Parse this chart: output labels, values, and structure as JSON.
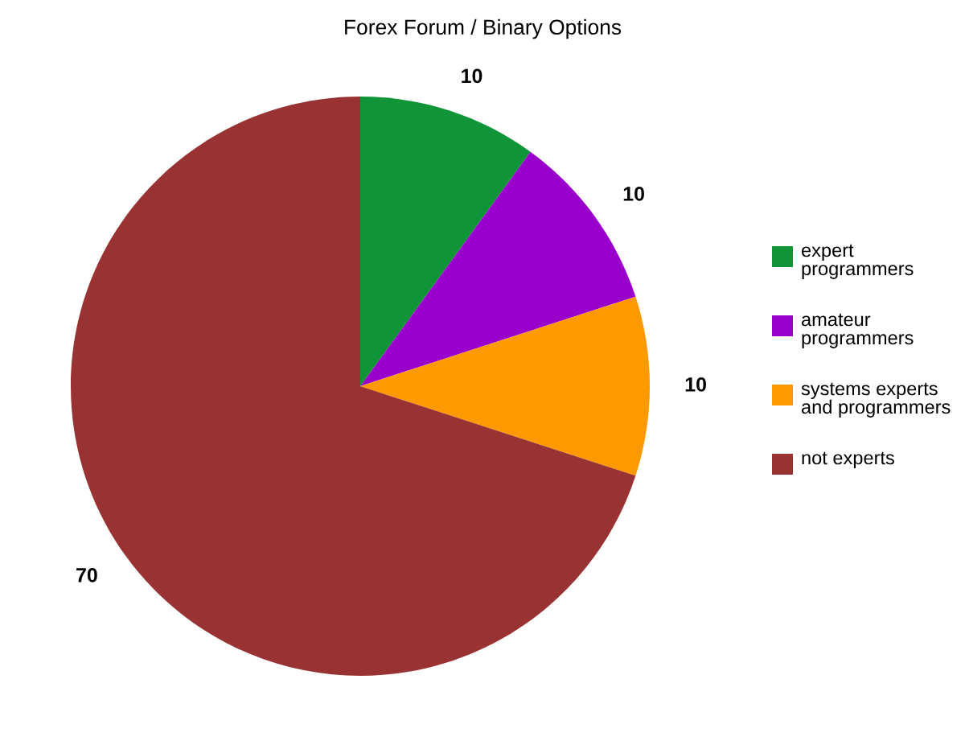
{
  "chart_data": {
    "type": "pie",
    "title": "Forex Forum / Binary Options",
    "categories": [
      "expert programmers",
      "amateur programmers",
      "systems experts and programmers",
      "not experts"
    ],
    "values": [
      10,
      10,
      10,
      70
    ],
    "colors": [
      "#0f9538",
      "#9900cc",
      "#ff9900",
      "#993333"
    ],
    "data_labels": true,
    "legend": "right"
  }
}
